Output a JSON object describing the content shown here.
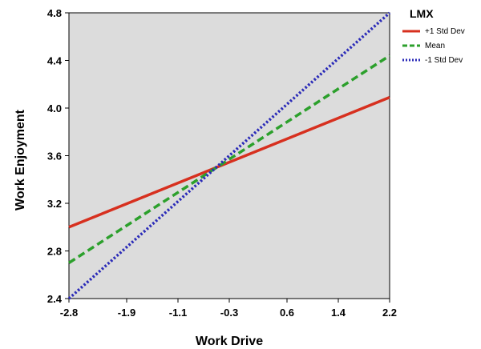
{
  "chart_data": {
    "type": "line",
    "title": "",
    "xlabel": "Work Drive",
    "ylabel": "Work  Enjoyment",
    "xlim": [
      -2.8,
      2.2
    ],
    "ylim": [
      2.4,
      4.8
    ],
    "x_ticks": [
      "-2.8",
      "-1.9",
      "-1.1",
      "-0.3",
      "0.6",
      "1.4",
      "2.2"
    ],
    "y_ticks": [
      "2.4",
      "2.8",
      "3.2",
      "3.6",
      "4.0",
      "4.4",
      "4.8"
    ],
    "legend": {
      "title": "LMX",
      "position": "top-right, outside plot"
    },
    "series": [
      {
        "name": "+1 Std Dev",
        "x": [
          -2.8,
          2.2
        ],
        "y": [
          3.0,
          4.09
        ],
        "color": "#d7301f",
        "dash": "solid"
      },
      {
        "name": "Mean",
        "x": [
          -2.8,
          2.2
        ],
        "y": [
          2.7,
          4.44
        ],
        "color": "#2ca02c",
        "dash": "dashed"
      },
      {
        "name": "-1 Std Dev",
        "x": [
          -2.8,
          2.2
        ],
        "y": [
          2.4,
          4.8
        ],
        "color": "#2b2bb8",
        "dash": "dotted"
      }
    ],
    "background": "#dcdcdc",
    "grid": false
  }
}
